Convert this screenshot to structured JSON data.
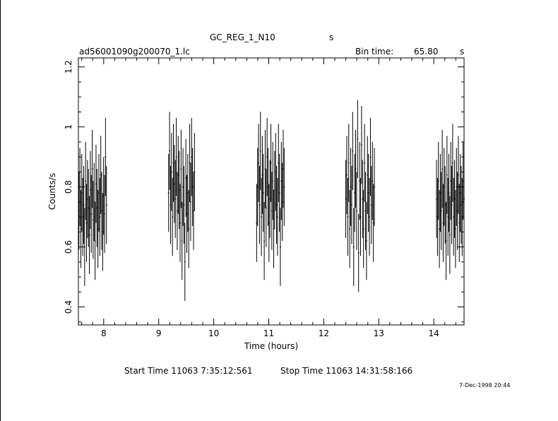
{
  "header": {
    "title": "GC_REG_1_N10",
    "title_unit": "s",
    "filename": "ad56001090g200070_1.lc",
    "bin_time_label": "Bin time:",
    "bin_time_value": "65.80",
    "bin_time_unit": "s"
  },
  "footer": {
    "start_label": "Start Time 11063  7:35:12:561",
    "stop_label": "Stop Time 11063 14:31:58:166",
    "timestamp": "7-Dec-1998 20:44"
  },
  "chart_data": {
    "type": "scatter",
    "title": "GC_REG_1_N10",
    "xlabel": "Time (hours)",
    "ylabel": "Counts/s",
    "xlim": [
      7.54,
      14.55
    ],
    "ylim": [
      0.34,
      1.23
    ],
    "x_ticks": [
      8,
      9,
      10,
      11,
      12,
      13,
      14
    ],
    "y_ticks": [
      0.4,
      0.6,
      0.8,
      1,
      1.2
    ],
    "y_tick_labels": [
      "0.4",
      "0.6",
      "0.8",
      "1",
      "1.2"
    ],
    "grid": false,
    "error_bar_half_width": 0.13,
    "segments": [
      {
        "start": 7.55,
        "end": 8.05,
        "values": [
          0.72,
          0.8,
          0.66,
          0.78,
          0.7,
          0.74,
          0.6,
          0.82,
          0.68,
          0.76,
          0.73,
          0.64,
          0.79,
          0.71,
          0.86,
          0.69,
          0.75,
          0.62,
          0.81,
          0.73,
          0.66,
          0.78,
          0.7,
          0.84,
          0.72,
          0.65,
          0.77,
          0.71,
          0.9,
          0.74
        ]
      },
      {
        "start": 9.18,
        "end": 9.65,
        "values": [
          0.78,
          0.92,
          0.74,
          0.85,
          0.7,
          0.88,
          0.81,
          0.76,
          0.9,
          0.72,
          0.84,
          0.79,
          0.68,
          0.86,
          0.62,
          0.8,
          0.74,
          0.55,
          0.83,
          0.71,
          0.78,
          0.66,
          0.88,
          0.75,
          0.9,
          0.8,
          0.72,
          0.85
        ]
      },
      {
        "start": 10.78,
        "end": 11.28,
        "values": [
          0.68,
          0.8,
          0.88,
          0.74,
          0.92,
          0.7,
          0.84,
          0.78,
          0.62,
          0.86,
          0.73,
          0.9,
          0.8,
          0.68,
          0.76,
          0.88,
          0.72,
          0.82,
          0.66,
          0.79,
          0.85,
          0.74,
          0.7,
          0.88,
          0.78,
          0.6,
          0.82,
          0.75,
          0.86,
          0.8
        ]
      },
      {
        "start": 12.4,
        "end": 12.92,
        "values": [
          0.76,
          0.84,
          0.7,
          0.88,
          0.66,
          0.8,
          0.74,
          0.92,
          0.6,
          0.78,
          0.86,
          0.72,
          0.96,
          0.58,
          0.82,
          0.7,
          0.94,
          0.76,
          0.66,
          0.88,
          0.72,
          0.62,
          0.84,
          0.78,
          0.7,
          0.9,
          0.74,
          0.82,
          0.68,
          0.8
        ]
      },
      {
        "start": 14.05,
        "end": 14.55,
        "values": [
          0.76,
          0.7,
          0.82,
          0.66,
          0.78,
          0.72,
          0.86,
          0.68,
          0.8,
          0.74,
          0.62,
          0.84,
          0.7,
          0.78,
          0.64,
          0.82,
          0.74,
          0.88,
          0.7,
          0.76,
          0.66,
          0.8,
          0.72,
          0.84,
          0.68,
          0.78,
          0.74,
          0.7,
          0.82,
          0.76
        ]
      }
    ]
  }
}
